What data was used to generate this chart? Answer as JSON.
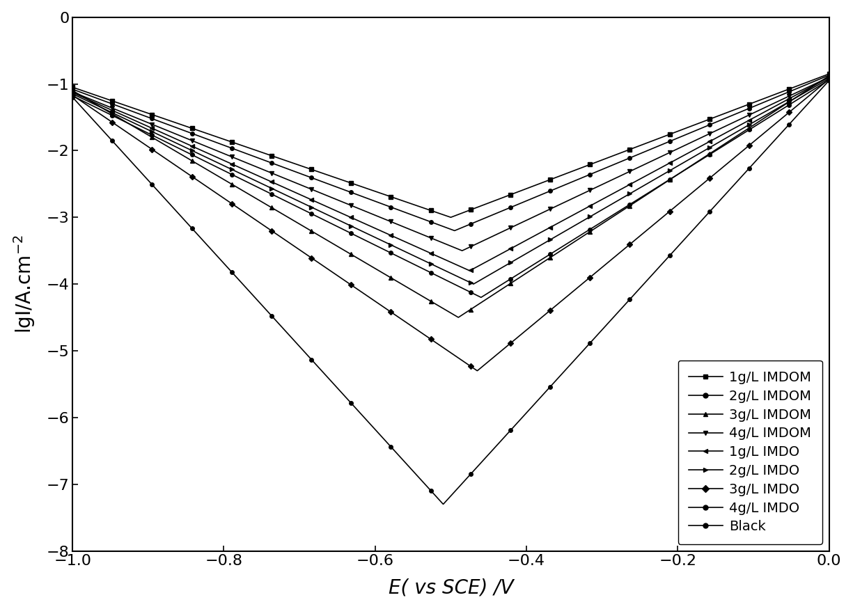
{
  "title": "",
  "xlabel": "E( vs SCE) /V",
  "ylabel": "lgI/A.cm⁻²",
  "xlim": [
    -1.0,
    0.0
  ],
  "ylim": [
    -8,
    0
  ],
  "xticks": [
    -1.0,
    -0.8,
    -0.6,
    -0.4,
    -0.2,
    0.0
  ],
  "yticks": [
    -8,
    -7,
    -6,
    -5,
    -4,
    -3,
    -2,
    -1,
    0
  ],
  "background_color": "#ffffff",
  "series": [
    {
      "label": "1g/L IMDOM",
      "marker": "s",
      "ecorr": -0.5,
      "icorr": -3.0,
      "ba": 0.12,
      "bc": 0.18,
      "color": "#000000"
    },
    {
      "label": "2g/L IMDOM",
      "marker": "o",
      "ecorr": -0.49,
      "icorr": -3.2,
      "ba": 0.12,
      "bc": 0.18,
      "color": "#000000"
    },
    {
      "label": "3g/L IMDOM",
      "marker": "^",
      "ecorr": -0.48,
      "icorr": -4.5,
      "ba": 0.12,
      "bc": 0.18,
      "color": "#000000"
    },
    {
      "label": "4g/L IMDOM",
      "marker": "v",
      "ecorr": -0.47,
      "icorr": -3.5,
      "ba": 0.12,
      "bc": 0.18,
      "color": "#000000"
    },
    {
      "label": "1g/L IMDO",
      "marker": "<",
      "ecorr": -0.46,
      "icorr": -3.8,
      "ba": 0.13,
      "bc": 0.2,
      "color": "#000000"
    },
    {
      "label": "2g/L IMDO",
      "marker": ">",
      "ecorr": -0.45,
      "icorr": -4.0,
      "ba": 0.13,
      "bc": 0.2,
      "color": "#000000"
    },
    {
      "label": "3g/L IMDO",
      "marker": "D",
      "ecorr": -0.44,
      "icorr": -5.3,
      "ba": 0.13,
      "bc": 0.2,
      "color": "#000000"
    },
    {
      "label": "4g/L IMDO",
      "marker": "o",
      "ecorr": -0.43,
      "icorr": -4.2,
      "ba": 0.13,
      "bc": 0.2,
      "color": "#000000"
    },
    {
      "label": "Black",
      "marker": "o",
      "ecorr": -0.51,
      "icorr": -7.3,
      "ba": 0.1,
      "bc": 0.16,
      "color": "#000000"
    }
  ],
  "legend_markers": [
    "s",
    "o",
    "^",
    "v",
    "<",
    ">",
    "D",
    "o",
    "o"
  ],
  "legend_labels": [
    "1g/L IMDOM",
    "2g/L IMDOM",
    "3g/L IMDOM",
    "4g/L IMDOM",
    "1g/L IMDO",
    "2g/L IMDO",
    "3g/L IMDO",
    "4g/L IMDO",
    "Black"
  ]
}
